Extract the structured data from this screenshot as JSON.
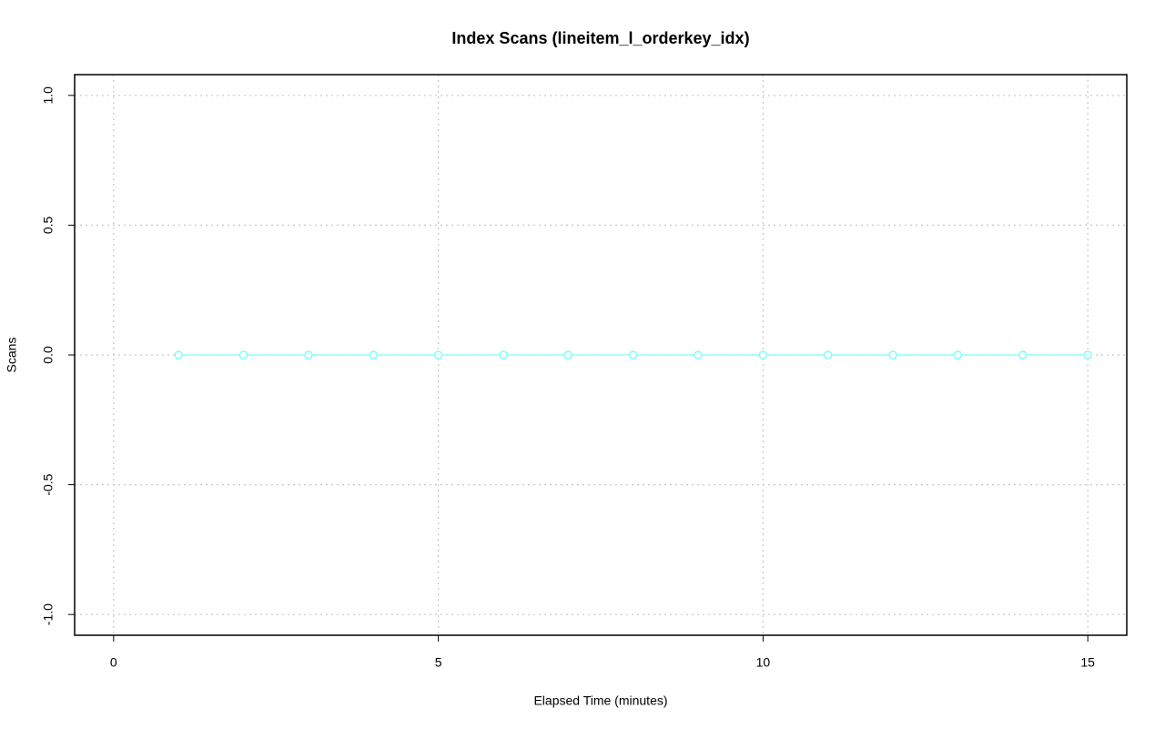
{
  "chart_data": {
    "type": "line",
    "title": "Index Scans (lineitem_l_orderkey_idx)",
    "x_label": "Elapsed Time (minutes)",
    "y_label": "Scans",
    "x": [
      1,
      2,
      3,
      4,
      5,
      6,
      7,
      8,
      9,
      10,
      11,
      12,
      13,
      14,
      15
    ],
    "values": [
      0,
      0,
      0,
      0,
      0,
      0,
      0,
      0,
      0,
      0,
      0,
      0,
      0,
      0,
      0
    ],
    "color": "#7fffff",
    "xlim": [
      -0.6,
      15.6
    ],
    "xticks": [
      0,
      5,
      10,
      15
    ],
    "ylim": [
      -1.08,
      1.08
    ],
    "yticks": [
      {
        "value": -1,
        "label": "-1.0"
      },
      {
        "value": -0.5,
        "label": "-0.5"
      },
      {
        "value": 0,
        "label": "0.0"
      },
      {
        "value": 0.5,
        "label": "0.5"
      },
      {
        "value": 1,
        "label": "1.0"
      }
    ],
    "grid": true
  }
}
